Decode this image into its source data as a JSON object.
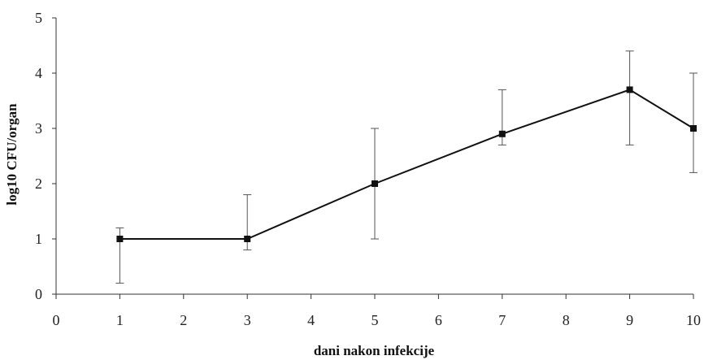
{
  "chart_data": {
    "type": "line",
    "title": "",
    "xlabel": "dani nakon infekcije",
    "ylabel": "log10 CFU/organ",
    "xlim": [
      0,
      10
    ],
    "ylim": [
      0,
      5
    ],
    "x_ticks": [
      0,
      1,
      2,
      3,
      4,
      5,
      6,
      7,
      8,
      9,
      10
    ],
    "y_ticks": [
      0,
      1,
      2,
      3,
      4,
      5
    ],
    "grid": false,
    "legend": "none",
    "series": [
      {
        "x": [
          1,
          3,
          5,
          7,
          9,
          10
        ],
        "y": [
          1.0,
          1.0,
          2.0,
          2.9,
          3.7,
          3.0
        ],
        "error_low": [
          0.2,
          0.8,
          1.0,
          2.7,
          2.7,
          2.2
        ],
        "error_high": [
          1.2,
          1.8,
          3.0,
          3.7,
          4.4,
          4.0
        ],
        "color": "#111111",
        "marker": "square"
      }
    ]
  }
}
